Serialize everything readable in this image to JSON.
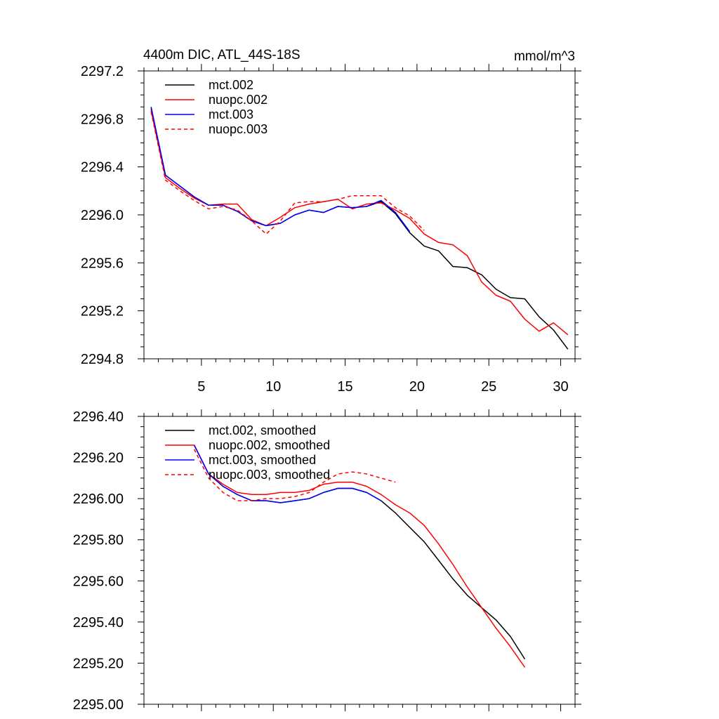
{
  "chart_data": [
    {
      "type": "line",
      "title_left": "4400m DIC, ATL_44S-18S",
      "title_right": "mmol/m^3",
      "xlim": [
        1,
        31
      ],
      "ylim": [
        2294.8,
        2297.2
      ],
      "yticks": [
        2294.8,
        2295.2,
        2295.6,
        2296.0,
        2296.4,
        2296.8,
        2297.2
      ],
      "ytick_labels": [
        "2294.8",
        "2295.2",
        "2295.6",
        "2296.0",
        "2296.4",
        "2296.8",
        "2297.2"
      ],
      "xticks": [
        5,
        10,
        15,
        20,
        25,
        30
      ],
      "xtick_labels": [
        "5",
        "10",
        "15",
        "20",
        "25",
        "30"
      ],
      "legend_position": "top-left",
      "series": [
        {
          "name": "mct.002",
          "color": "#000000",
          "dash": false,
          "x": [
            1.5,
            2.5,
            3.5,
            4.5,
            5.5,
            6.5,
            7.5,
            8.5,
            9.5,
            10.5,
            11.5,
            12.5,
            13.5,
            14.5,
            15.5,
            16.5,
            17.5,
            18.5,
            19.5,
            20.5,
            21.5,
            22.5,
            23.5,
            24.5,
            25.5,
            26.5,
            27.5,
            28.5,
            29.5,
            30.5
          ],
          "y": [
            2296.89,
            2296.33,
            2296.24,
            2296.15,
            2296.08,
            2296.08,
            2296.03,
            2295.95,
            2295.91,
            2295.93,
            2296.0,
            2296.04,
            2296.02,
            2296.07,
            2296.06,
            2296.07,
            2296.11,
            2296.01,
            2295.85,
            2295.74,
            2295.7,
            2295.57,
            2295.56,
            2295.5,
            2295.38,
            2295.31,
            2295.3,
            2295.15,
            2295.04,
            2294.88
          ]
        },
        {
          "name": "nuopc.002",
          "color": "#ff0000",
          "dash": false,
          "x": [
            1.5,
            2.5,
            3.5,
            4.5,
            5.5,
            6.5,
            7.5,
            8.5,
            9.5,
            10.5,
            11.5,
            12.5,
            13.5,
            14.5,
            15.5,
            16.5,
            17.5,
            18.5,
            19.5,
            20.5,
            21.5,
            22.5,
            23.5,
            24.5,
            25.5,
            26.5,
            27.5,
            28.5,
            29.5,
            30.5
          ],
          "y": [
            2296.87,
            2296.31,
            2296.22,
            2296.14,
            2296.08,
            2296.09,
            2296.09,
            2295.96,
            2295.91,
            2295.98,
            2296.06,
            2296.09,
            2296.11,
            2296.13,
            2296.05,
            2296.09,
            2296.1,
            2296.04,
            2295.97,
            2295.84,
            2295.77,
            2295.75,
            2295.66,
            2295.44,
            2295.33,
            2295.28,
            2295.13,
            2295.03,
            2295.1,
            2295.0
          ]
        },
        {
          "name": "mct.003",
          "color": "#0000ff",
          "dash": false,
          "x": [
            1.5,
            2.5,
            3.5,
            4.5,
            5.5,
            6.5,
            7.5,
            8.5,
            9.5,
            10.5,
            11.5,
            12.5,
            13.5,
            14.5,
            15.5,
            16.5,
            17.5,
            18.5,
            19.5
          ],
          "y": [
            2296.9,
            2296.33,
            2296.24,
            2296.15,
            2296.08,
            2296.08,
            2296.03,
            2295.95,
            2295.91,
            2295.93,
            2296.0,
            2296.04,
            2296.02,
            2296.07,
            2296.06,
            2296.07,
            2296.12,
            2296.02,
            2295.86
          ]
        },
        {
          "name": "nuopc.003",
          "color": "#ff0000",
          "dash": true,
          "x": [
            1.5,
            2.5,
            3.5,
            4.5,
            5.5,
            6.5,
            7.5,
            8.5,
            9.5,
            10.5,
            11.5,
            12.5,
            13.5,
            14.5,
            15.5,
            16.5,
            17.5,
            18.5,
            19.5,
            20.5
          ],
          "y": [
            2296.86,
            2296.29,
            2296.2,
            2296.12,
            2296.05,
            2296.07,
            2296.04,
            2295.95,
            2295.84,
            2295.95,
            2296.1,
            2296.11,
            2296.11,
            2296.13,
            2296.16,
            2296.16,
            2296.16,
            2296.06,
            2295.99,
            2295.87
          ]
        }
      ]
    },
    {
      "type": "line",
      "xlim": [
        1,
        31
      ],
      "ylim": [
        2295.0,
        2296.4
      ],
      "yticks": [
        2295.0,
        2295.2,
        2295.4,
        2295.6,
        2295.8,
        2296.0,
        2296.2,
        2296.4
      ],
      "ytick_labels": [
        "2295.00",
        "2295.20",
        "2295.40",
        "2295.60",
        "2295.80",
        "2296.00",
        "2296.20",
        "2296.40"
      ],
      "xticks": [
        5,
        10,
        15,
        20,
        25,
        30
      ],
      "xtick_labels": [],
      "legend_position": "top-left",
      "series": [
        {
          "name": "mct.002, smoothed",
          "color": "#000000",
          "dash": false,
          "x": [
            4.5,
            5.5,
            6.5,
            7.5,
            8.5,
            9.5,
            10.5,
            11.5,
            12.5,
            13.5,
            14.5,
            15.5,
            16.5,
            17.5,
            18.5,
            19.5,
            20.5,
            21.5,
            22.5,
            23.5,
            24.5,
            25.5,
            26.5,
            27.5
          ],
          "y": [
            2296.26,
            2296.12,
            2296.06,
            2296.02,
            2295.99,
            2295.99,
            2295.98,
            2295.99,
            2296.0,
            2296.03,
            2296.05,
            2296.05,
            2296.03,
            2295.99,
            2295.93,
            2295.86,
            2295.79,
            2295.7,
            2295.61,
            2295.53,
            2295.47,
            2295.41,
            2295.33,
            2295.22
          ]
        },
        {
          "name": "nuopc.002, smoothed",
          "color": "#ff0000",
          "dash": false,
          "x": [
            4.5,
            5.5,
            6.5,
            7.5,
            8.5,
            9.5,
            10.5,
            11.5,
            12.5,
            13.5,
            14.5,
            15.5,
            16.5,
            17.5,
            18.5,
            19.5,
            20.5,
            21.5,
            22.5,
            23.5,
            24.5,
            25.5,
            26.5,
            27.5
          ],
          "y": [
            2296.26,
            2296.12,
            2296.07,
            2296.03,
            2296.02,
            2296.02,
            2296.03,
            2296.03,
            2296.04,
            2296.07,
            2296.08,
            2296.08,
            2296.06,
            2296.02,
            2295.97,
            2295.93,
            2295.87,
            2295.78,
            2295.68,
            2295.57,
            2295.47,
            2295.37,
            2295.28,
            2295.18
          ]
        },
        {
          "name": "mct.003, smoothed",
          "color": "#0000ff",
          "dash": false,
          "x": [
            4.5,
            5.5,
            6.5,
            7.5,
            8.5,
            9.5,
            10.5,
            11.5,
            12.5,
            13.5,
            14.5,
            15.5,
            16.5,
            17.5
          ],
          "y": [
            2296.26,
            2296.12,
            2296.06,
            2296.02,
            2295.99,
            2295.99,
            2295.98,
            2295.99,
            2296.0,
            2296.03,
            2296.05,
            2296.05,
            2296.03,
            2295.99
          ]
        },
        {
          "name": "nuopc.003, smoothed",
          "color": "#ff0000",
          "dash": true,
          "x": [
            4.5,
            5.5,
            6.5,
            7.5,
            8.5,
            9.5,
            10.5,
            11.5,
            12.5,
            13.5,
            14.5,
            15.5,
            16.5,
            17.5,
            18.5
          ],
          "y": [
            2296.24,
            2296.1,
            2296.03,
            2295.99,
            2295.99,
            2296.0,
            2296.0,
            2296.01,
            2296.03,
            2296.08,
            2296.12,
            2296.13,
            2296.12,
            2296.1,
            2296.08
          ]
        }
      ]
    }
  ]
}
